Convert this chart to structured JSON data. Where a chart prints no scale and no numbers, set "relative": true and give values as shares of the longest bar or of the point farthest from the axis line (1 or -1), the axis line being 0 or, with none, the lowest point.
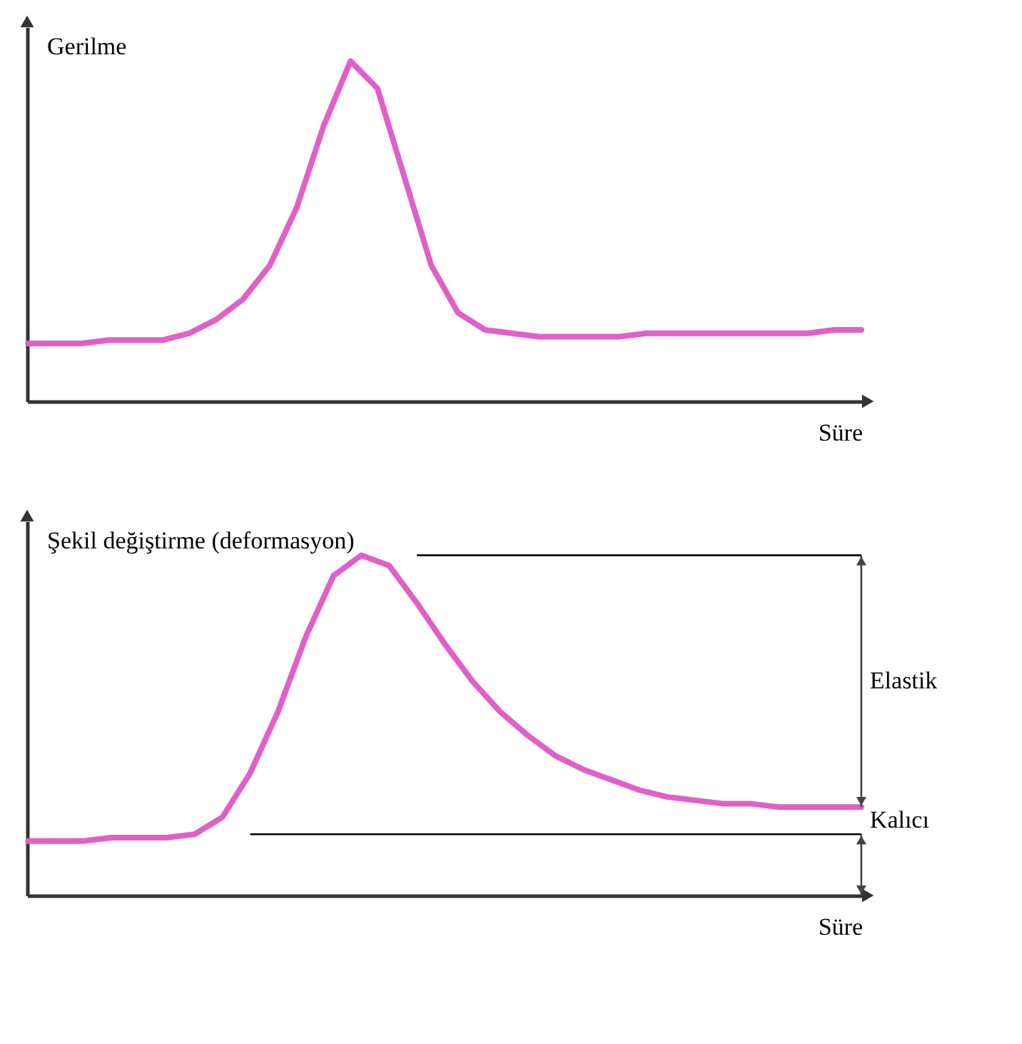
{
  "chart_data": [
    {
      "type": "line",
      "relative": true,
      "ylabel": "Gerilme",
      "xlabel": "Süre",
      "grid": false,
      "marker": "none",
      "line_style": "solid",
      "categories": [
        null,
        null,
        null,
        null,
        null,
        null,
        null,
        null,
        null,
        null,
        null,
        null,
        null,
        null,
        null,
        null,
        null,
        null,
        null,
        null,
        null,
        null,
        null,
        null,
        null,
        null,
        null,
        null,
        null,
        null,
        null,
        null
      ],
      "series": [
        {
          "color": "#e060c8",
          "values": [
            0.17,
            0.17,
            0.17,
            0.18,
            0.18,
            0.18,
            0.2,
            0.24,
            0.3,
            0.4,
            0.57,
            0.81,
            1,
            0.92,
            0.66,
            0.4,
            0.26,
            0.21,
            0.2,
            0.19,
            0.19,
            0.19,
            0.19,
            0.2,
            0.2,
            0.2,
            0.2,
            0.2,
            0.2,
            0.2,
            0.21,
            0.21
          ]
        }
      ]
    },
    {
      "type": "line",
      "relative": true,
      "ylabel": "Şekil değiştirme (deformasyon)",
      "xlabel": "Süre",
      "grid": false,
      "marker": "none",
      "line_style": "solid",
      "categories": [
        null,
        null,
        null,
        null,
        null,
        null,
        null,
        null,
        null,
        null,
        null,
        null,
        null,
        null,
        null,
        null,
        null,
        null,
        null,
        null,
        null,
        null,
        null,
        null,
        null,
        null,
        null,
        null,
        null,
        null,
        null
      ],
      "series": [
        {
          "color": "#e060c8",
          "values": [
            0.16,
            0.16,
            0.16,
            0.17,
            0.17,
            0.17,
            0.18,
            0.23,
            0.36,
            0.54,
            0.76,
            0.94,
            1,
            0.97,
            0.86,
            0.74,
            0.63,
            0.54,
            0.47,
            0.41,
            0.37,
            0.34,
            0.31,
            0.29,
            0.28,
            0.27,
            0.27,
            0.26,
            0.26,
            0.26,
            0.26
          ]
        }
      ],
      "ref_lines": [
        {
          "axis": "y",
          "value": 1,
          "color": "#000000"
        },
        {
          "axis": "y",
          "value": 0.18,
          "color": "#000000"
        }
      ],
      "annotations": [
        "Elastik",
        "Kalıcı"
      ]
    }
  ]
}
